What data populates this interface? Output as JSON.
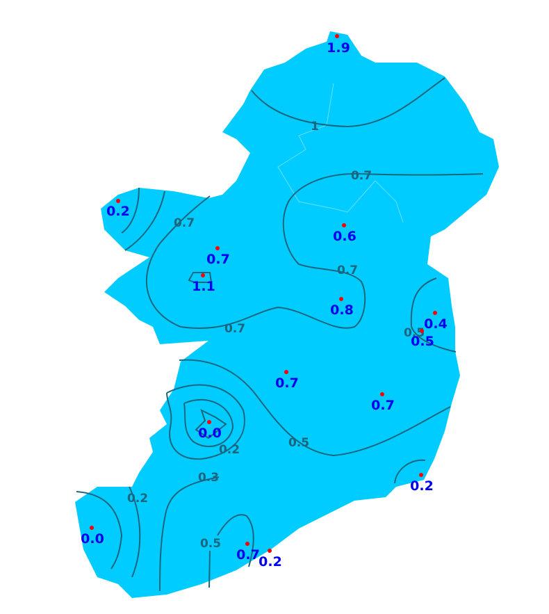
{
  "colors": {
    "land": "#00ccff",
    "contour": "#1a6680",
    "station_value": "#0000ee",
    "station_dot": "#ff0000"
  },
  "stations": [
    {
      "value": "1.9"
    },
    {
      "value": "0.2"
    },
    {
      "value": "0.6"
    },
    {
      "value": "0.7"
    },
    {
      "value": "1.1"
    },
    {
      "value": "0.8"
    },
    {
      "value": "0.4"
    },
    {
      "value": "0.5"
    },
    {
      "value": "0.7"
    },
    {
      "value": "0.7"
    },
    {
      "value": "0.0"
    },
    {
      "value": "0.2"
    },
    {
      "value": "0.0"
    },
    {
      "value": "0.7"
    },
    {
      "value": "0.2"
    }
  ],
  "contour_labels": [
    "1",
    "0.7",
    "0.7",
    "0.7",
    "0.7",
    "0.5",
    "0.5",
    "0.2",
    "0.3",
    "0.2",
    "0.5"
  ]
}
